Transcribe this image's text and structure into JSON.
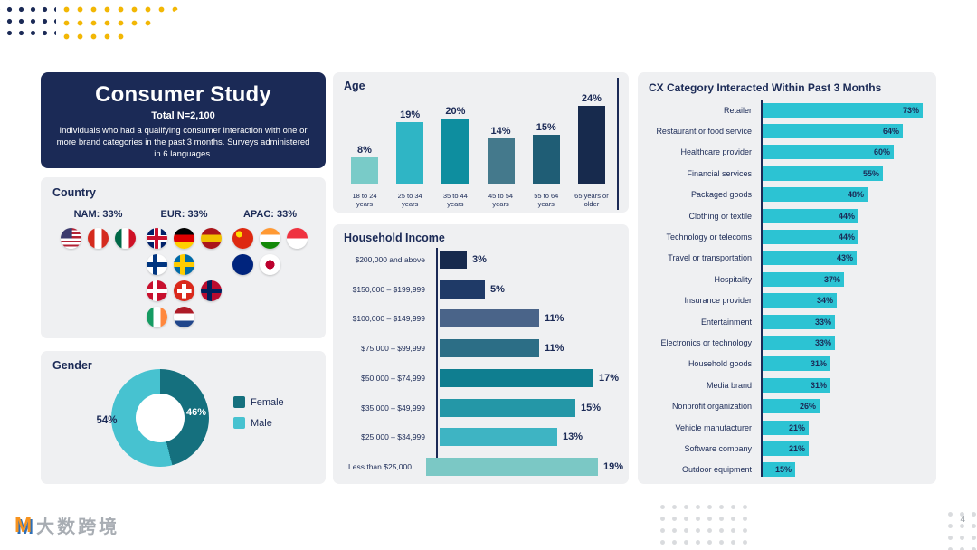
{
  "slide": {
    "page_number": "4"
  },
  "study_card": {
    "title": "Consumer Study",
    "total": "Total N=2,100",
    "description": "Individuals who had a qualifying consumer interaction with one or more brand categories in the past 3 months. Surveys administered in 6 languages."
  },
  "country": {
    "title": "Country",
    "regions": [
      {
        "label": "NAM: 33%",
        "rows": [
          [
            {
              "name": "usa-flag",
              "t": "us"
            },
            {
              "name": "canada-flag",
              "t": "v",
              "c": [
                "#D52B1E",
                "#FFFFFF",
                "#D52B1E"
              ]
            },
            {
              "name": "mexico-flag",
              "t": "v",
              "c": [
                "#006847",
                "#FFFFFF",
                "#CE1126"
              ]
            }
          ]
        ]
      },
      {
        "label": "EUR: 33%",
        "rows": [
          [
            {
              "name": "uk-flag",
              "t": "uk"
            },
            {
              "name": "germany-flag",
              "t": "h",
              "c": [
                "#000000",
                "#DD0000",
                "#FFCE00"
              ]
            },
            {
              "name": "spain-flag",
              "t": "h",
              "c": [
                "#AA151B",
                "#F1BF00",
                "#AA151B"
              ]
            }
          ],
          [
            {
              "name": "finland-flag",
              "t": "nordic",
              "c": [
                "#FFFFFF",
                "#003580"
              ]
            },
            {
              "name": "sweden-flag",
              "t": "nordic",
              "c": [
                "#006AA7",
                "#FECC00"
              ]
            }
          ],
          [
            {
              "name": "denmark-flag",
              "t": "nordic",
              "c": [
                "#C8102E",
                "#FFFFFF"
              ]
            },
            {
              "name": "switzerland-flag",
              "t": "cross",
              "c": [
                "#DA291C",
                "#FFFFFF"
              ]
            },
            {
              "name": "norway-flag",
              "t": "nordic",
              "c": [
                "#BA0C2F",
                "#00205B"
              ]
            }
          ],
          [
            {
              "name": "ireland-flag",
              "t": "v",
              "c": [
                "#169B62",
                "#FFFFFF",
                "#FF883E"
              ]
            },
            {
              "name": "netherlands-flag",
              "t": "h",
              "c": [
                "#AE1C28",
                "#FFFFFF",
                "#21468B"
              ]
            }
          ]
        ]
      },
      {
        "label": "APAC: 33%",
        "rows": [
          [
            {
              "name": "china-flag",
              "t": "china"
            },
            {
              "name": "india-flag",
              "t": "h",
              "c": [
                "#FF9933",
                "#FFFFFF",
                "#138808"
              ]
            },
            {
              "name": "singapore-flag",
              "t": "h",
              "c": [
                "#EF3340",
                "#FFFFFF"
              ]
            }
          ],
          [
            {
              "name": "australia-flag",
              "t": "plain",
              "c": [
                "#00247D"
              ]
            },
            {
              "name": "japan-flag",
              "t": "disc",
              "c": [
                "#FFFFFF",
                "#BC002D"
              ]
            }
          ]
        ]
      }
    ]
  },
  "watermark": {
    "mark": "M",
    "text": "大数跨境"
  },
  "chart_data": [
    {
      "type": "bar",
      "orientation": "vertical",
      "title": "Age",
      "categories": [
        "18 to 24 years",
        "25 to 34 years",
        "35 to 44 years",
        "45 to 54 years",
        "55 to 64 years",
        "65 years or older"
      ],
      "values": [
        8,
        19,
        20,
        14,
        15,
        24
      ],
      "value_suffix": "%",
      "bar_colors": [
        "#79CBC8",
        "#2FB5C5",
        "#0E8E9F",
        "#44798C",
        "#1F5D75",
        "#172A4D"
      ],
      "ylim": [
        0,
        25
      ],
      "grid": false
    },
    {
      "type": "bar",
      "orientation": "horizontal",
      "title": "Household Income",
      "categories": [
        "$200,000 and above",
        "$150,000 – $199,999",
        "$100,000 – $149,999",
        "$75,000 – $99,999",
        "$50,000 – $74,999",
        "$35,000 – $49,999",
        "$25,000 – $34,999",
        "Less than $25,000"
      ],
      "values": [
        3,
        5,
        11,
        11,
        17,
        15,
        13,
        19
      ],
      "value_suffix": "%",
      "bar_colors": [
        "#172A4D",
        "#1F3A67",
        "#4A6489",
        "#2C6E86",
        "#0F7E90",
        "#2497A7",
        "#3EB4C3",
        "#7BC8C5"
      ],
      "xlim": [
        0,
        20
      ],
      "grid": false
    },
    {
      "type": "bar",
      "orientation": "horizontal",
      "title": "CX Category Interacted Within Past 3 Months",
      "categories": [
        "Retailer",
        "Restaurant or food service",
        "Healthcare provider",
        "Financial services",
        "Packaged goods",
        "Clothing or textile",
        "Technology or telecoms",
        "Travel or transportation",
        "Hospitality",
        "Insurance provider",
        "Entertainment",
        "Electronics or technology",
        "Household goods",
        "Media brand",
        "Nonprofit organization",
        "Vehicle manufacturer",
        "Software company",
        "Outdoor equipment"
      ],
      "values": [
        73,
        64,
        60,
        55,
        48,
        44,
        44,
        43,
        37,
        34,
        33,
        33,
        31,
        31,
        26,
        21,
        21,
        15
      ],
      "value_suffix": "%",
      "bar_color": "#2CC3D3",
      "xlim": [
        0,
        80
      ],
      "grid": false
    },
    {
      "type": "pie",
      "donut": true,
      "title": "Gender",
      "categories": [
        "Female",
        "Male"
      ],
      "values": [
        46,
        54
      ],
      "value_suffix": "%",
      "colors": [
        "#15707E",
        "#47C2D0"
      ],
      "legend_position": "right"
    }
  ],
  "theme": {
    "navy": "#1B2A56",
    "panel_bg": "#EFF0F2",
    "accent_cyan": "#2CC3D3",
    "dot_yellow": "#F2B705",
    "dot_gray": "#D9DBDE"
  }
}
